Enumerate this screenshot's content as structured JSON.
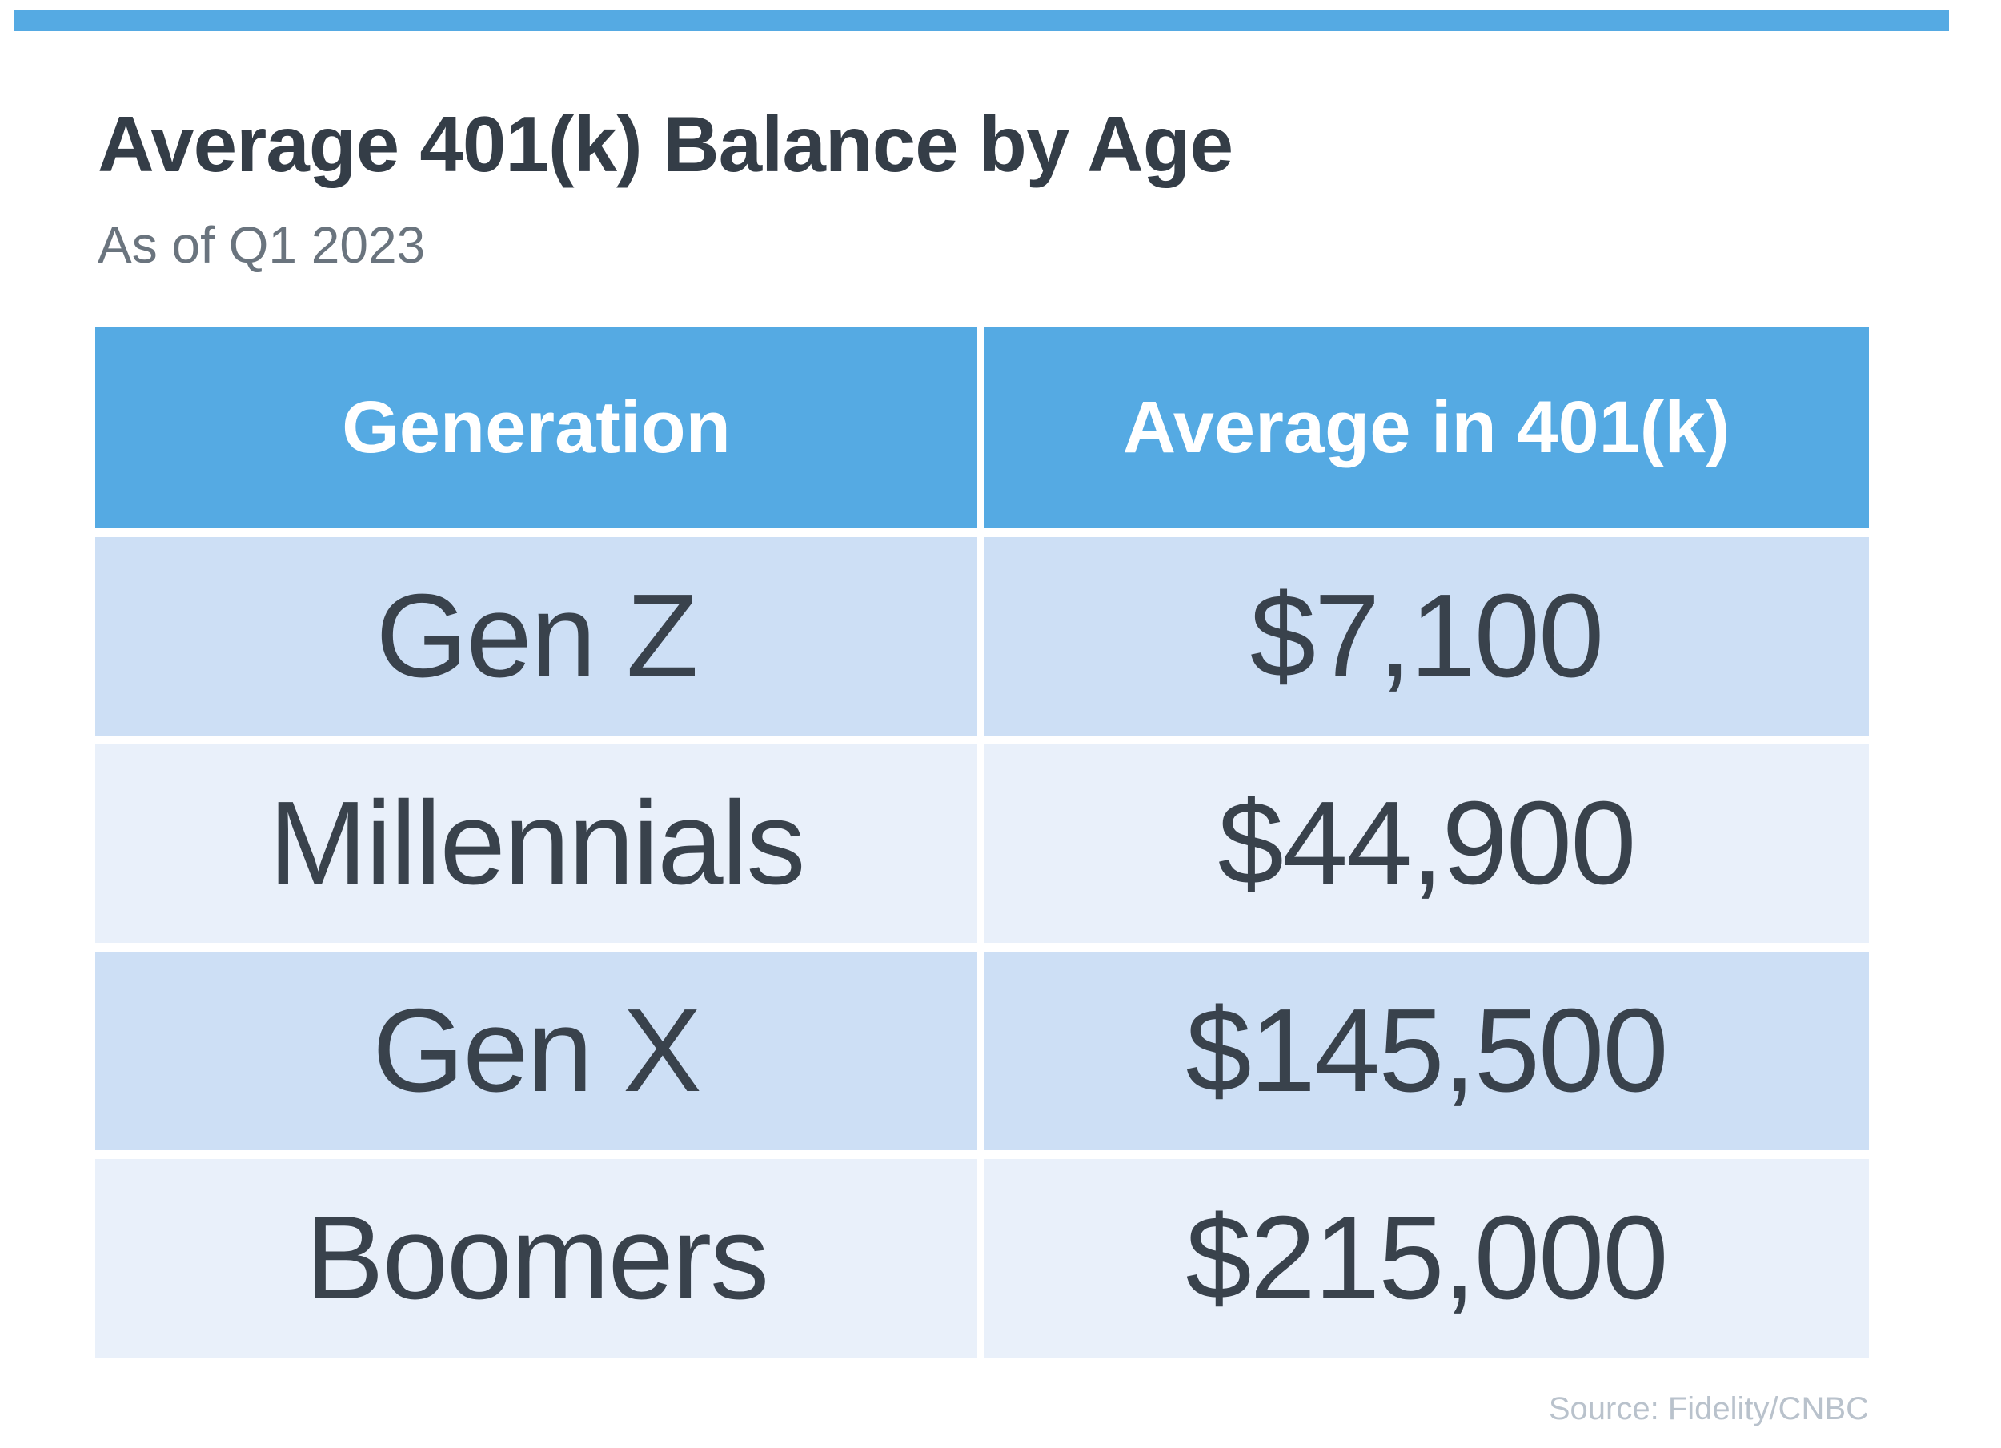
{
  "page": {
    "title": "Average 401(k) Balance by Age",
    "subtitle": "As of Q1 2023",
    "source": "Source: Fidelity/CNBC"
  },
  "colors": {
    "accent_blue": "#55AAE3",
    "header_text": "#FFFFFF",
    "row_shade_dark": "#CDDFF5",
    "row_shade_light": "#E9F0FA",
    "title_text": "#343D47",
    "subtitle_text": "#6A747E",
    "cell_text": "#39424C",
    "source_text": "#B9C2CC"
  },
  "table": {
    "columns": [
      "Generation",
      "Average in 401(k)"
    ],
    "rows": [
      {
        "generation": "Gen Z",
        "average": "$7,100"
      },
      {
        "generation": "Millennials",
        "average": "$44,900"
      },
      {
        "generation": "Gen X",
        "average": "$145,500"
      },
      {
        "generation": "Boomers",
        "average": "$215,000"
      }
    ]
  },
  "chart_data": {
    "type": "table",
    "title": "Average 401(k) Balance by Age",
    "subtitle": "As of Q1 2023",
    "source": "Source: Fidelity/CNBC",
    "columns": [
      "Generation",
      "Average in 401(k)"
    ],
    "categories": [
      "Gen Z",
      "Millennials",
      "Gen X",
      "Boomers"
    ],
    "values": [
      7100,
      44900,
      145500,
      215000
    ],
    "values_formatted": [
      "$7,100",
      "$44,900",
      "$145,500",
      "$215,000"
    ]
  }
}
